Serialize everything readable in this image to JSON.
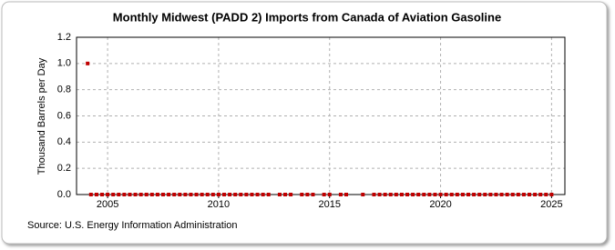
{
  "chart_data": {
    "type": "scatter",
    "title": "Monthly Midwest (PADD 2) Imports from Canada of Aviation Gasoline",
    "y_label": "Thousand Barrels per Day",
    "source": "Source: U.S. Energy Information Administration",
    "xlim": [
      2003.6,
      2025.6
    ],
    "xticks": [
      2005,
      2010,
      2015,
      2020,
      2025
    ],
    "ylim": [
      0,
      1.2
    ],
    "yticks": [
      {
        "value": 0,
        "label": "0.0"
      },
      {
        "value": 0.2,
        "label": "0.2"
      },
      {
        "value": 0.4,
        "label": "0.4"
      },
      {
        "value": 0.6,
        "label": "0.6"
      },
      {
        "value": 0.8,
        "label": "0.8"
      },
      {
        "value": 1.0,
        "label": "1.0"
      },
      {
        "value": 1.2,
        "label": "1.2"
      }
    ],
    "grid": true,
    "series": [
      {
        "color": "#c00000",
        "x": [
          2004.1,
          2004.25,
          2004.5,
          2004.75,
          2005,
          2005.25,
          2005.5,
          2005.75,
          2006,
          2006.25,
          2006.5,
          2006.75,
          2007,
          2007.25,
          2007.5,
          2007.75,
          2008,
          2008.25,
          2008.5,
          2008.75,
          2009,
          2009.25,
          2009.5,
          2009.75,
          2010,
          2010.25,
          2010.5,
          2010.75,
          2011,
          2011.25,
          2011.5,
          2011.75,
          2012,
          2012.25,
          2012.75,
          2013,
          2013.25,
          2013.75,
          2014,
          2014.25,
          2014.75,
          2015,
          2015.5,
          2015.75,
          2016.5,
          2017,
          2017.25,
          2017.5,
          2017.75,
          2018,
          2018.25,
          2018.5,
          2018.75,
          2019,
          2019.25,
          2019.5,
          2019.75,
          2020,
          2020.25,
          2020.5,
          2020.75,
          2021,
          2021.25,
          2021.5,
          2021.75,
          2022,
          2022.25,
          2022.5,
          2022.75,
          2023,
          2023.25,
          2023.5,
          2023.75,
          2024,
          2024.25,
          2024.5,
          2024.75,
          2025
        ],
        "values": [
          1.0,
          0,
          0,
          0,
          0,
          0,
          0,
          0,
          0,
          0,
          0,
          0,
          0,
          0,
          0,
          0,
          0,
          0,
          0,
          0,
          0,
          0,
          0,
          0,
          0,
          0,
          0,
          0,
          0,
          0,
          0,
          0,
          0,
          0,
          0,
          0,
          0,
          0,
          0,
          0,
          0,
          0,
          0,
          0,
          0,
          0,
          0,
          0,
          0,
          0,
          0,
          0,
          0,
          0,
          0,
          0,
          0,
          0,
          0,
          0,
          0,
          0,
          0,
          0,
          0,
          0,
          0,
          0,
          0,
          0,
          0,
          0,
          0,
          0,
          0,
          0,
          0,
          0
        ]
      }
    ]
  }
}
